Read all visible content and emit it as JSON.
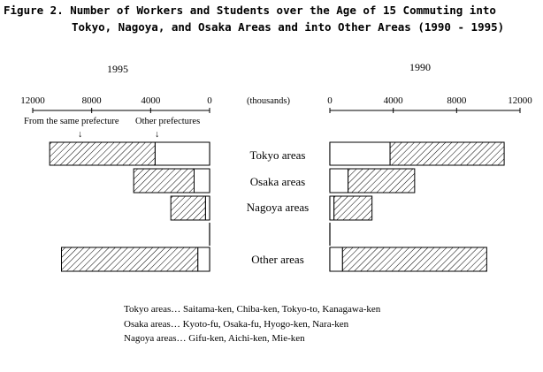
{
  "title_line1": "Figure 2. Number of Workers and Students over the Age of 15 Commuting into",
  "title_line2": "Tokyo, Nagoya, and Osaka Areas and into Other Areas (1990 - 1995)",
  "units_label": "(thousands)",
  "annotation_same": "From the same prefecture",
  "annotation_other": "Other prefectures",
  "arrow_glyph": "↓",
  "notes": [
    "Tokyo areas… Saitama-ken, Chiba-ken, Tokyo-to, Kanagawa-ken",
    "Osaka areas… Kyoto-fu, Osaka-fu, Hyogo-ken, Nara-ken",
    "Nagoya areas… Gifu-ken, Aichi-ken, Mie-ken"
  ],
  "colors": {
    "ink": "#000000",
    "background": "#ffffff"
  },
  "chart_data": [
    {
      "type": "bar",
      "orientation": "horizontal",
      "stacked": true,
      "direction": "right-to-left",
      "title": "1995",
      "categories": [
        "Tokyo areas",
        "Osaka areas",
        "Nagoya areas",
        "Other areas"
      ],
      "series": [
        {
          "name": "Other prefectures",
          "pattern": "white",
          "values": [
            3700,
            1050,
            280,
            800
          ]
        },
        {
          "name": "From the same prefecture",
          "pattern": "hatched",
          "values": [
            7150,
            4100,
            2350,
            9250
          ]
        }
      ],
      "xlim": [
        0,
        12000
      ],
      "xticks": [
        12000,
        8000,
        4000,
        0
      ],
      "grid": false
    },
    {
      "type": "bar",
      "orientation": "horizontal",
      "stacked": true,
      "direction": "left-to-right",
      "title": "1990",
      "categories": [
        "Tokyo areas",
        "Osaka areas",
        "Nagoya areas",
        "Other areas"
      ],
      "series": [
        {
          "name": "Other prefectures",
          "pattern": "white",
          "values": [
            3800,
            1150,
            260,
            800
          ]
        },
        {
          "name": "From the same prefecture",
          "pattern": "hatched",
          "values": [
            7200,
            4200,
            2400,
            9100
          ]
        }
      ],
      "xlim": [
        0,
        12000
      ],
      "xticks": [
        0,
        4000,
        8000,
        12000
      ],
      "grid": false
    }
  ]
}
